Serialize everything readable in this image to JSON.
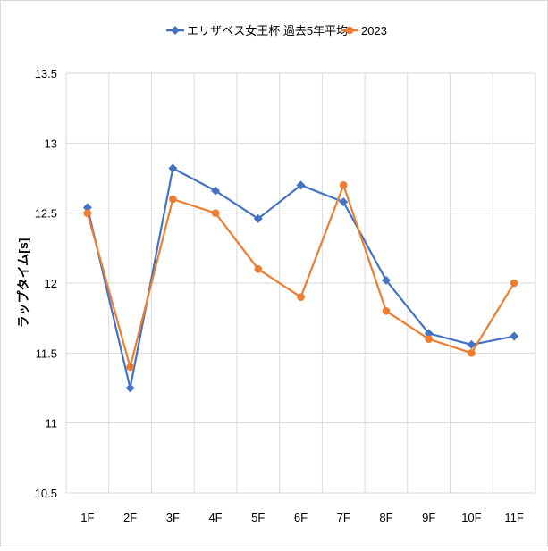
{
  "chart_data": {
    "type": "line",
    "categories": [
      "1F",
      "2F",
      "3F",
      "4F",
      "5F",
      "6F",
      "7F",
      "8F",
      "9F",
      "10F",
      "11F"
    ],
    "series": [
      {
        "name": "エリザベス女王杯 過去5年平均",
        "color": "#4472c4",
        "marker": "diamond",
        "values": [
          12.54,
          11.25,
          12.82,
          12.66,
          12.46,
          12.7,
          12.58,
          12.02,
          11.64,
          11.56,
          11.62
        ]
      },
      {
        "name": "2023",
        "color": "#ed7d31",
        "marker": "circle",
        "values": [
          12.5,
          11.4,
          12.6,
          12.5,
          12.1,
          11.9,
          12.7,
          11.8,
          11.6,
          11.5,
          12.0
        ]
      }
    ],
    "ylabel": "ラップタイム[s]",
    "ylim": [
      10.5,
      13.5
    ],
    "yticks": [
      "10.5",
      "11",
      "11.5",
      "12",
      "12.5",
      "13",
      "13.5"
    ],
    "grid": true,
    "legend": "top"
  }
}
